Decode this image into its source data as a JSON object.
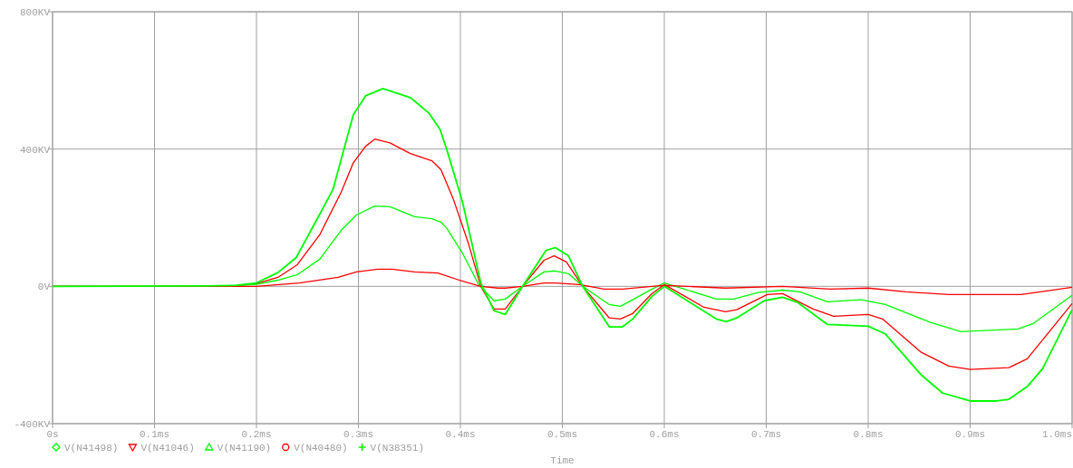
{
  "chart_data": {
    "type": "line",
    "xlabel": "Time",
    "xlim": [
      0,
      1.0
    ],
    "ylim": [
      -400,
      800
    ],
    "xticks": [
      {
        "value": 0,
        "label": "0s"
      },
      {
        "value": 0.1,
        "label": "0.1ms"
      },
      {
        "value": 0.2,
        "label": "0.2ms"
      },
      {
        "value": 0.3,
        "label": "0.3ms"
      },
      {
        "value": 0.4,
        "label": "0.4ms"
      },
      {
        "value": 0.5,
        "label": "0.5ms"
      },
      {
        "value": 0.6,
        "label": "0.6ms"
      },
      {
        "value": 0.7,
        "label": "0.7ms"
      },
      {
        "value": 0.8,
        "label": "0.8ms"
      },
      {
        "value": 0.9,
        "label": "0.9ms"
      },
      {
        "value": 1.0,
        "label": "1.0ms"
      }
    ],
    "yticks": [
      {
        "value": -400,
        "label": "-400KV"
      },
      {
        "value": 0,
        "label": "0V"
      },
      {
        "value": 400,
        "label": "400KV"
      },
      {
        "value": 800,
        "label": "800KV"
      }
    ],
    "grid": true,
    "legend": "bottom",
    "line_style": "solid",
    "series": [
      {
        "name": "V(N41498)",
        "color": "#00ff00"
      },
      {
        "name": "V(N41046)",
        "color": "#ff0000",
        "x": [
          0,
          0.15,
          0.18,
          0.2,
          0.221,
          0.24,
          0.262,
          0.283,
          0.295,
          0.307,
          0.316,
          0.331,
          0.351,
          0.372,
          0.381,
          0.393,
          0.408,
          0.42,
          0.433,
          0.444,
          0.461,
          0.482,
          0.492,
          0.504,
          0.52,
          0.546,
          0.557,
          0.569,
          0.588,
          0.6,
          0.639,
          0.66,
          0.671,
          0.701,
          0.716,
          0.746,
          0.766,
          0.8,
          0.814,
          0.852,
          0.879,
          0.9,
          0.938,
          0.956,
          1.0
        ],
        "values": [
          0,
          0,
          2,
          8,
          26,
          63,
          150,
          274,
          360,
          408,
          429,
          418,
          387,
          366,
          340,
          255,
          124,
          0,
          -66,
          -66,
          0,
          76,
          89,
          71,
          0,
          -92,
          -95,
          -79,
          -21,
          5,
          -61,
          -74,
          -68,
          -24,
          -21,
          -66,
          -87,
          -82,
          -95,
          -192,
          -232,
          -242,
          -237,
          -211,
          -50
        ]
      },
      {
        "name": "V(N41190)",
        "color": "#00ff00",
        "x": [
          0,
          0.15,
          0.18,
          0.2,
          0.221,
          0.24,
          0.262,
          0.283,
          0.298,
          0.316,
          0.331,
          0.355,
          0.372,
          0.381,
          0.387,
          0.402,
          0.418,
          0.433,
          0.444,
          0.461,
          0.482,
          0.493,
          0.506,
          0.52,
          0.546,
          0.557,
          0.569,
          0.588,
          0.6,
          0.651,
          0.668,
          0.692,
          0.716,
          0.733,
          0.76,
          0.793,
          0.817,
          0.861,
          0.891,
          0.947,
          0.962,
          1.0
        ],
        "values": [
          0,
          0,
          2,
          6,
          18,
          34,
          79,
          163,
          208,
          234,
          232,
          203,
          197,
          187,
          168,
          97,
          5,
          -42,
          -37,
          0,
          42,
          45,
          37,
          0,
          -53,
          -58,
          -39,
          -8,
          10,
          -37,
          -37,
          -18,
          -11,
          -16,
          -45,
          -39,
          -53,
          -105,
          -132,
          -124,
          -108,
          -26
        ]
      },
      {
        "name": "V(N40480)",
        "color": "#ff0000",
        "x": [
          0,
          0.2,
          0.242,
          0.28,
          0.298,
          0.319,
          0.333,
          0.355,
          0.378,
          0.399,
          0.42,
          0.437,
          0.444,
          0.461,
          0.482,
          0.493,
          0.517,
          0.541,
          0.559,
          0.588,
          0.6,
          0.66,
          0.716,
          0.763,
          0.8,
          0.837,
          0.879,
          0.95,
          1.0
        ],
        "values": [
          0,
          0,
          10,
          26,
          42,
          50,
          50,
          42,
          39,
          18,
          0,
          -5,
          -5,
          0,
          10,
          10,
          5,
          -8,
          -8,
          0,
          3,
          -5,
          0,
          -8,
          -5,
          -16,
          -24,
          -24,
          -3
        ]
      },
      {
        "name": "V(N38351)",
        "color": "#00ff00",
        "x": [
          0,
          0.15,
          0.18,
          0.2,
          0.221,
          0.239,
          0.262,
          0.275,
          0.295,
          0.307,
          0.324,
          0.351,
          0.369,
          0.38,
          0.387,
          0.402,
          0.42,
          0.433,
          0.444,
          0.461,
          0.484,
          0.493,
          0.506,
          0.52,
          0.546,
          0.559,
          0.569,
          0.588,
          0.6,
          0.651,
          0.661,
          0.671,
          0.698,
          0.716,
          0.731,
          0.76,
          0.8,
          0.817,
          0.852,
          0.873,
          0.9,
          0.926,
          0.938,
          0.956,
          0.971,
          1.0
        ],
        "values": [
          0,
          1,
          3,
          10,
          40,
          84,
          210,
          282,
          500,
          555,
          576,
          550,
          505,
          458,
          395,
          247,
          10,
          -71,
          -82,
          0,
          105,
          113,
          89,
          0,
          -118,
          -118,
          -95,
          -29,
          0,
          -95,
          -103,
          -92,
          -42,
          -32,
          -47,
          -111,
          -116,
          -139,
          -258,
          -311,
          -334,
          -334,
          -329,
          -292,
          -240,
          -68
        ]
      }
    ]
  }
}
